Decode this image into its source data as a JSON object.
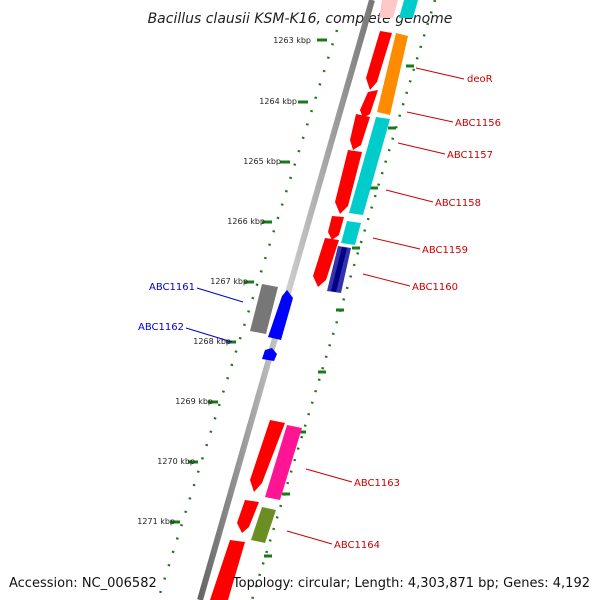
{
  "map": {
    "title": "Bacillus clausii KSM-K16, complete genome",
    "accession_text": "Accession: NC_006582",
    "topology_text": "Topology: circular; Length: 4,303,871 bp; Genes: 4,192"
  },
  "colors": {
    "forward_gene": "#ff0000",
    "reverse_gene": "#0000ff",
    "label_red": "#cc0000",
    "label_blue": "#0000cc",
    "tick_green": "#1a7a1a",
    "backbone": "#888888"
  },
  "ticks": [
    {
      "label": "1263 kbp"
    },
    {
      "label": "1264 kbp"
    },
    {
      "label": "1265 kbp"
    },
    {
      "label": "1266 kbp"
    },
    {
      "label": "1267 kbp"
    },
    {
      "label": "1268 kbp"
    },
    {
      "label": "1269 kbp"
    },
    {
      "label": "1270 kbp"
    },
    {
      "label": "1271 kbp"
    }
  ],
  "gene_labels": [
    {
      "id": "deoR",
      "text": "deoR",
      "color": "#cc0000"
    },
    {
      "id": "ABC1156",
      "text": "ABC1156",
      "color": "#cc0000"
    },
    {
      "id": "ABC1157",
      "text": "ABC1157",
      "color": "#cc0000"
    },
    {
      "id": "ABC1158",
      "text": "ABC1158",
      "color": "#cc0000"
    },
    {
      "id": "ABC1159",
      "text": "ABC1159",
      "color": "#cc0000"
    },
    {
      "id": "ABC1160",
      "text": "ABC1160",
      "color": "#cc0000"
    },
    {
      "id": "ABC1161",
      "text": "ABC1161",
      "color": "#0000cc"
    },
    {
      "id": "ABC1162",
      "text": "ABC1162",
      "color": "#0000cc"
    },
    {
      "id": "ABC1163",
      "text": "ABC1163",
      "color": "#cc0000"
    },
    {
      "id": "ABC1164",
      "text": "ABC1164",
      "color": "#cc0000"
    }
  ]
}
